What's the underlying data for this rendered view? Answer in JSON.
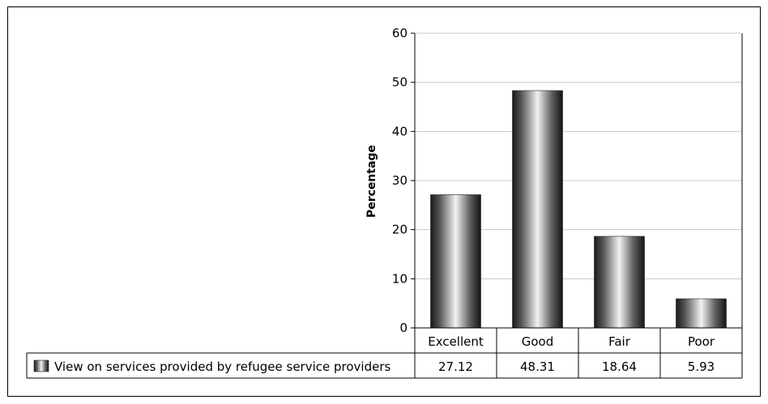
{
  "chart_data": {
    "type": "bar",
    "categories": [
      "Excellent",
      "Good",
      "Fair",
      "Poor"
    ],
    "series": [
      {
        "name": "View on services provided by refugee service providers",
        "values": [
          27.12,
          48.31,
          18.64,
          5.93
        ]
      }
    ],
    "value_labels": [
      "27.12",
      "48.31",
      "18.64",
      "5.93"
    ],
    "ylabel": "Percentage",
    "ylim": [
      0,
      60
    ],
    "yticks": [
      0,
      10,
      20,
      30,
      40,
      50,
      60
    ],
    "grid": true,
    "legend": "data-table",
    "bar_style": "metallic-cylinder",
    "colors": {
      "bar_dark": "#1a1a1a",
      "bar_light": "#f2f2f2",
      "grid": "#c8c8c8",
      "axis": "#000000"
    }
  }
}
